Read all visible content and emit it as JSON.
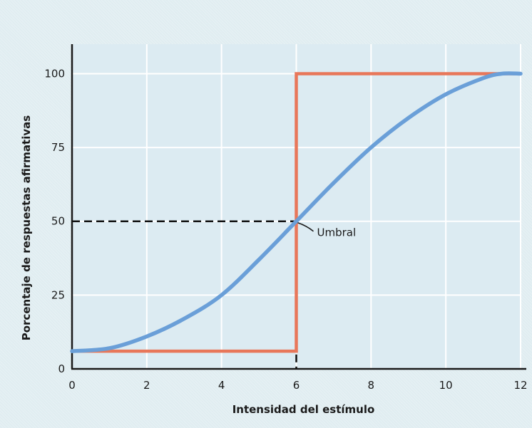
{
  "chart_data": {
    "type": "line",
    "title": "",
    "xlabel": "Intensidad del estímulo",
    "ylabel": "Porcentaje de respuestas afirmativas",
    "xlim": [
      0,
      12
    ],
    "ylim": [
      0,
      110
    ],
    "x_ticks": [
      "0",
      "2",
      "4",
      "6",
      "8",
      "10",
      "12"
    ],
    "y_ticks": [
      "0",
      "25",
      "50",
      "75",
      "100"
    ],
    "grid": true,
    "series": [
      {
        "color": "#e8775a",
        "x": [
          0,
          6,
          6,
          12
        ],
        "y": [
          6,
          6,
          100,
          100
        ]
      },
      {
        "color": "#6a9fd8",
        "x": [
          0,
          1,
          2,
          3,
          4,
          5,
          6,
          7,
          8,
          9,
          10,
          11,
          11.5,
          12
        ],
        "y": [
          6,
          7,
          11,
          17,
          25,
          37,
          50,
          63,
          75,
          85,
          93,
          98.5,
          100,
          100
        ]
      }
    ],
    "reference_lines": {
      "color": "#111111",
      "x": 6,
      "y": 50
    },
    "annotations": [
      {
        "text": "Umbral",
        "x": 6,
        "y": 50
      }
    ],
    "colors": {
      "plot_background": "#dcebf2",
      "grid": "#ffffff",
      "axis": "#1a1a1a"
    }
  }
}
